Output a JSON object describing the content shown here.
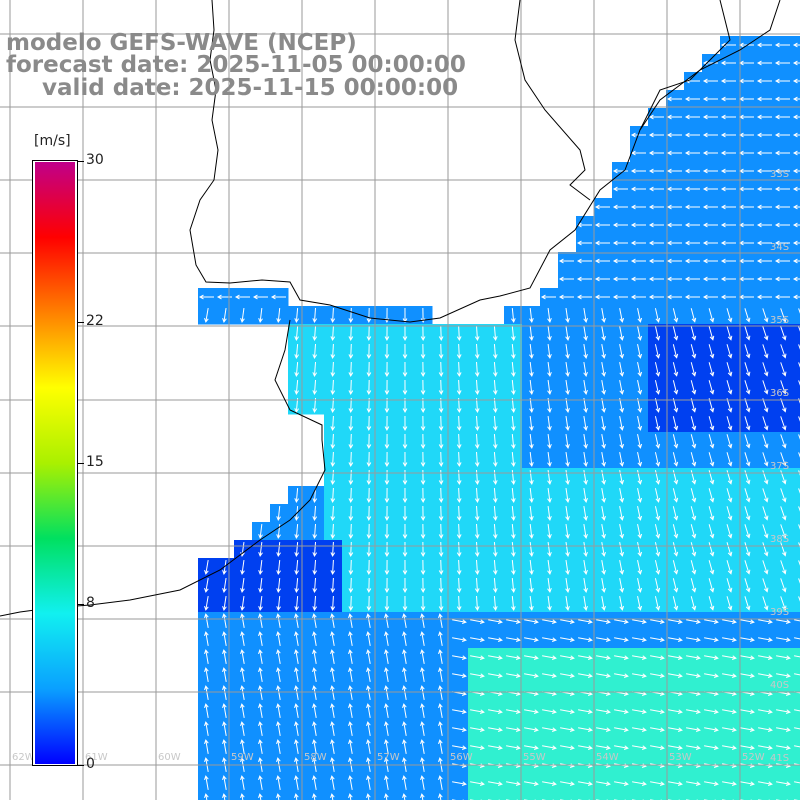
{
  "title": {
    "line1": "modelo GEFS-WAVE (NCEP)",
    "line2": "forecast date: 2025-11-05 00:00:00",
    "line3": "valid date: 2025-11-15 00:00:00"
  },
  "colorbar": {
    "unit": "[m/s]",
    "ticks": [
      {
        "label": "30",
        "value": 30
      },
      {
        "label": "22",
        "value": 22
      },
      {
        "label": "15",
        "value": 15
      },
      {
        "label": "8",
        "value": 8
      },
      {
        "label": "0",
        "value": 0
      }
    ],
    "stops": [
      "#0000ff",
      "#0aa0ff",
      "#11f0f0",
      "#00e060",
      "#aaf000",
      "#ffff00",
      "#ff8000",
      "#ff0000",
      "#c0008a"
    ]
  },
  "lat_labels": [
    "33S",
    "34S",
    "35S",
    "36S",
    "37S",
    "38S",
    "39S",
    "40S",
    "41S"
  ],
  "lon_labels": [
    "62W",
    "61W",
    "60W",
    "59W",
    "58W",
    "57W",
    "56W",
    "55W",
    "54W",
    "53W",
    "52W"
  ],
  "colors": {
    "deep_blue": "#0040f0",
    "mid_blue": "#1090ff",
    "cyan": "#20d8f8",
    "aqua": "#30f0d0",
    "grid": "#9a9a9a",
    "coast": "#000000"
  }
}
